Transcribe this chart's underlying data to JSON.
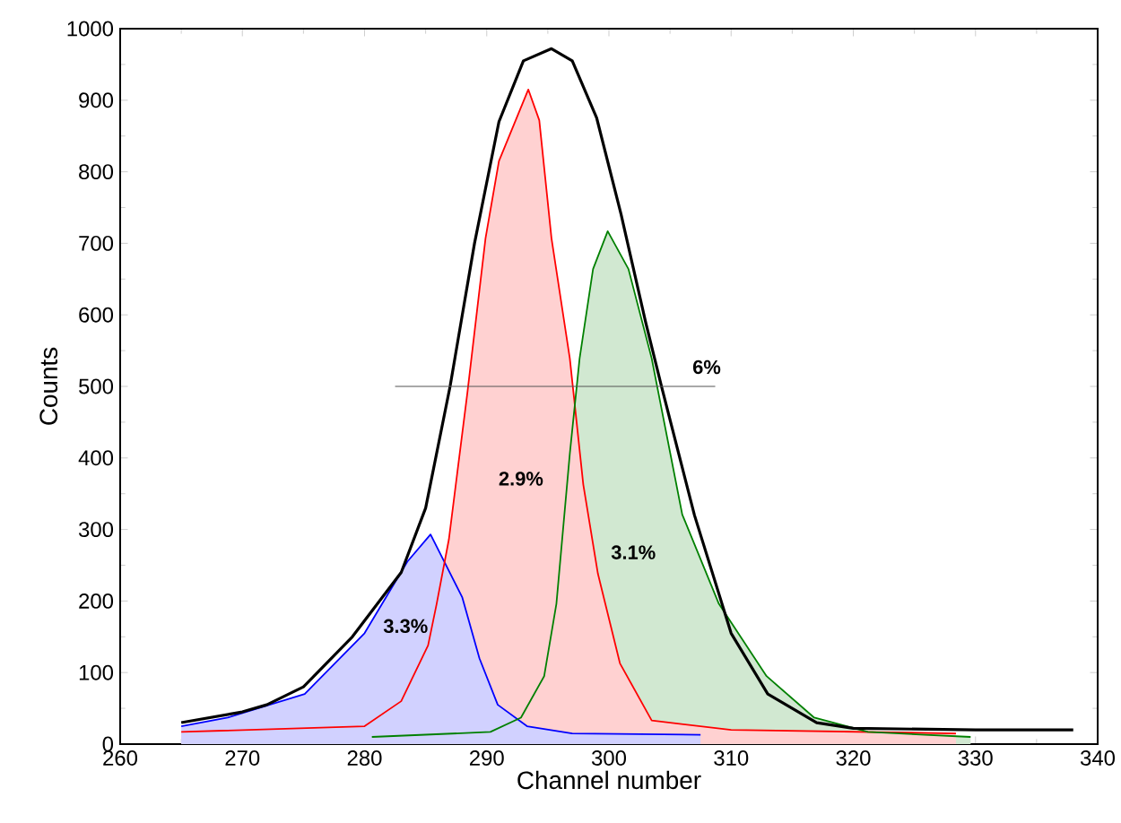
{
  "chart_data": {
    "type": "area",
    "xlabel": "Channel number",
    "ylabel": "Counts",
    "xlim": [
      260,
      340
    ],
    "ylim": [
      0,
      1000
    ],
    "xticks": [
      260,
      270,
      280,
      290,
      300,
      310,
      320,
      330,
      340
    ],
    "yticks": [
      0,
      100,
      200,
      300,
      400,
      500,
      600,
      700,
      800,
      900,
      1000
    ],
    "grid": false,
    "series": [
      {
        "color": "#0000ff",
        "x": [
          265,
          268.8,
          275.1,
          280,
          283.5,
          285.4,
          288,
          289.4,
          290.9,
          293.3,
          297,
          307.5
        ],
        "values": [
          25,
          37,
          70,
          155,
          255,
          293,
          205,
          120,
          55,
          25,
          15,
          13
        ]
      },
      {
        "color": "#ff0000",
        "x": [
          265,
          280,
          283,
          285.2,
          285.9,
          286.9,
          288.4,
          289.9,
          291,
          293.4,
          294.3,
          295.3,
          296.8,
          297.9,
          299.1,
          300.9,
          303.5,
          310,
          328.4
        ],
        "values": [
          17,
          25,
          60,
          138,
          196,
          286,
          489,
          707,
          815,
          915,
          872,
          707,
          539,
          363,
          238,
          113,
          33,
          20,
          15
        ]
      },
      {
        "color": "#008000",
        "x": [
          280.6,
          290.3,
          292.8,
          294.7,
          295.7,
          296.8,
          297.6,
          298.7,
          299.9,
          301.6,
          303.5,
          306,
          309,
          312.9,
          316.8,
          321.2,
          329.6
        ],
        "values": [
          10,
          17,
          37,
          95,
          196,
          406,
          539,
          664,
          717,
          664,
          539,
          321,
          196,
          95,
          37,
          17,
          10
        ]
      },
      {
        "type": "line",
        "color": "#000000",
        "x": [
          265,
          270,
          272,
          275,
          279,
          283,
          285,
          287,
          289,
          291,
          293,
          295.3,
          297,
          299,
          301,
          303,
          304.3,
          307,
          310,
          313,
          317,
          320,
          330,
          338
        ],
        "values": [
          30,
          45,
          55,
          80,
          150,
          240,
          330,
          500,
          700,
          870,
          955,
          972,
          955,
          875,
          740,
          590,
          500,
          320,
          155,
          70,
          30,
          22,
          20,
          20
        ]
      },
      {
        "type": "line",
        "color": "#555555",
        "x": [
          282.5,
          308.7
        ],
        "values": [
          500,
          500
        ]
      }
    ],
    "annotations": [
      "2.9%",
      "3.3%",
      "3.1%",
      "6%"
    ]
  }
}
